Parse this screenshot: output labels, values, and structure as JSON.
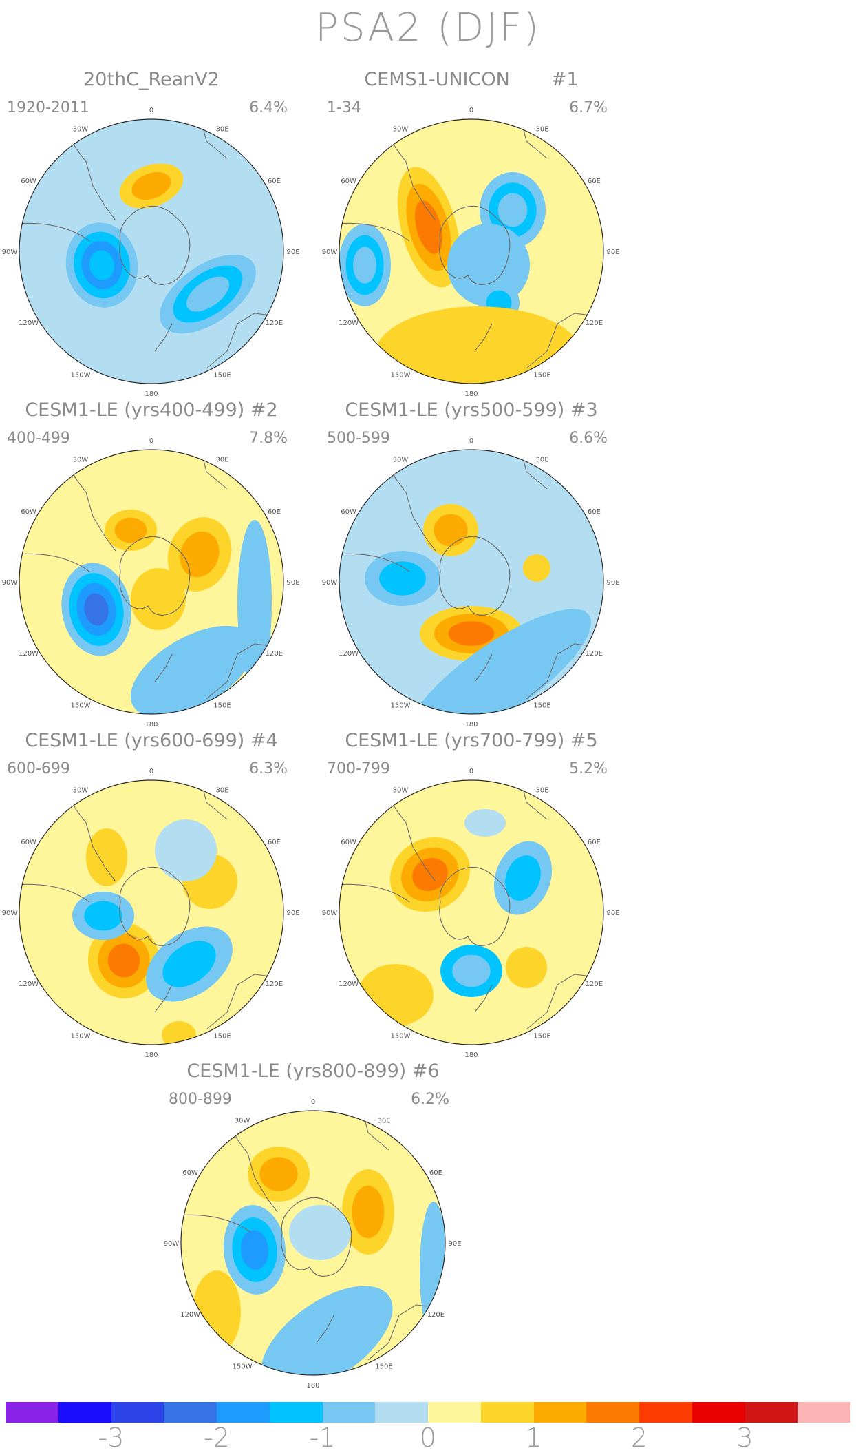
{
  "title": "PSA2 (DJF)",
  "panels": [
    {
      "title": "20thC_ReanV2",
      "years": "1920-2011",
      "percent": "6.4%"
    },
    {
      "title": "CEMS1-UNICON       #1",
      "years": "1-34",
      "percent": "6.7%"
    },
    {
      "title": "CESM1-LE (yrs400-499) #2",
      "years": "400-499",
      "percent": "7.8%"
    },
    {
      "title": "CESM1-LE (yrs500-599) #3",
      "years": "500-599",
      "percent": "6.6%"
    },
    {
      "title": "CESM1-LE (yrs600-699) #4",
      "years": "600-699",
      "percent": "6.3%"
    },
    {
      "title": "CESM1-LE (yrs700-799) #5",
      "years": "700-799",
      "percent": "5.2%"
    },
    {
      "title": "CESM1-LE (yrs800-899) #6",
      "years": "800-899",
      "percent": "6.2%"
    }
  ],
  "longitude_labels": [
    "0",
    "30E",
    "60E",
    "90E",
    "120E",
    "150E",
    "180",
    "150W",
    "120W",
    "90W",
    "60W",
    "30W"
  ],
  "colorbar": {
    "colors": [
      "#8b22e8",
      "#1a0cff",
      "#2b43e8",
      "#3573e6",
      "#1e9bff",
      "#00c3ff",
      "#76c8f2",
      "#b3def2",
      "#fff59a",
      "#fdd52a",
      "#fdab00",
      "#fd7a00",
      "#fe3b00",
      "#ea0000",
      "#d01616",
      "#fdb4b4"
    ],
    "labels": [
      "-3",
      "-2",
      "-1",
      "0",
      "1",
      "2",
      "3"
    ]
  }
}
